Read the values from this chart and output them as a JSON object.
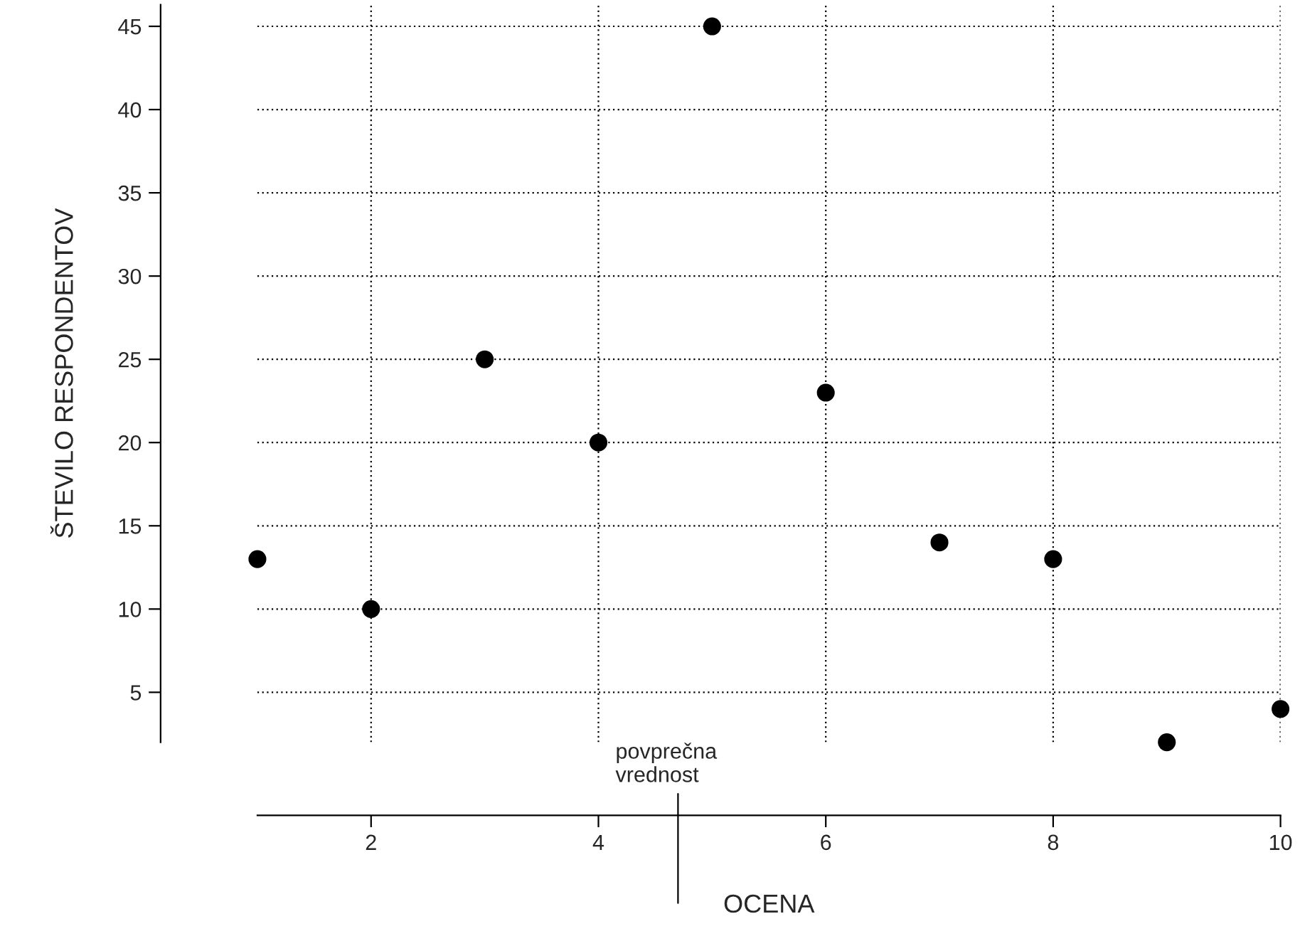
{
  "chart_data": {
    "type": "scatter",
    "xlabel": "OCENA",
    "ylabel": "ŠTEVILO RESPONDENTOV",
    "x": [
      1,
      2,
      3,
      4,
      5,
      6,
      7,
      8,
      9,
      10
    ],
    "series": [
      {
        "color": "#000000",
        "values": [
          13,
          10,
          25,
          20,
          45,
          23,
          14,
          13,
          2,
          4
        ]
      }
    ],
    "xlim": [
      1,
      10
    ],
    "xticks": [
      2,
      4,
      6,
      8,
      10
    ],
    "ylim": [
      2,
      46.3
    ],
    "yticks": [
      5,
      10,
      15,
      20,
      25,
      30,
      35,
      40,
      45
    ],
    "grid": true,
    "marker": "circle",
    "ref_lines": [
      {
        "axis": "x",
        "value": 4.7,
        "label": "povprečna\nvrednost"
      }
    ]
  }
}
